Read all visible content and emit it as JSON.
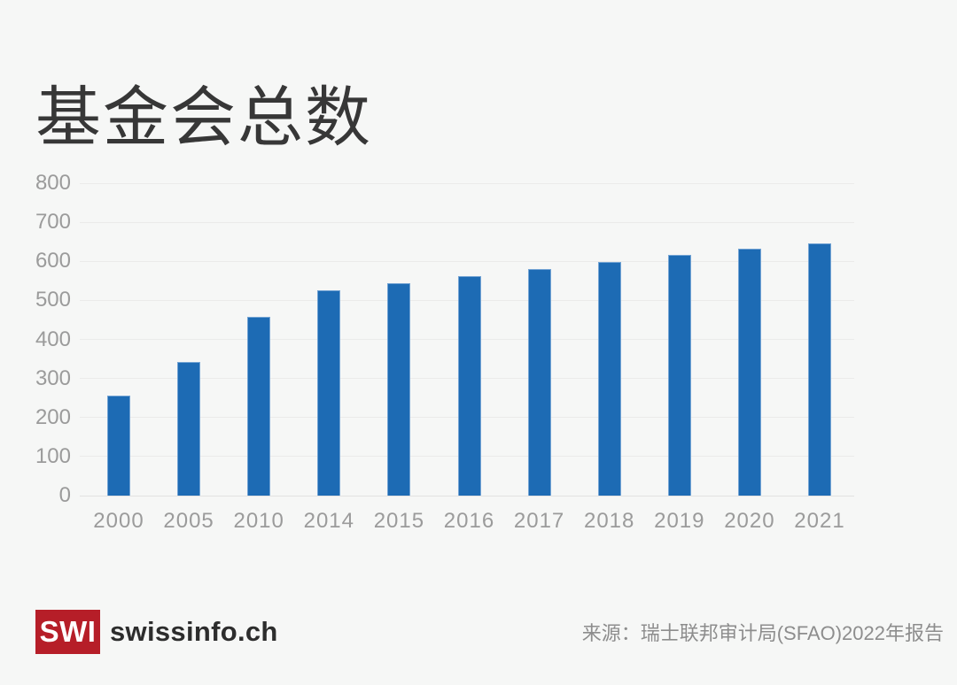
{
  "header": {
    "title": "基金会总数"
  },
  "chart_data": {
    "type": "bar",
    "title": "基金会总数",
    "categories": [
      "2000",
      "2005",
      "2010",
      "2014",
      "2015",
      "2016",
      "2017",
      "2018",
      "2019",
      "2020",
      "2021"
    ],
    "values": [
      257,
      342,
      457,
      525,
      543,
      561,
      581,
      599,
      617,
      632,
      645
    ],
    "xlabel": "",
    "ylabel": "",
    "ylim": [
      0,
      800
    ],
    "yticks": [
      0,
      100,
      200,
      300,
      400,
      500,
      600,
      700,
      800
    ],
    "grid": true,
    "legend": "none",
    "bar_color": "#1d6bb4"
  },
  "footer": {
    "logo_text": "SWI",
    "brand": "swissinfo.ch",
    "source": "来源：瑞士联邦审计局(SFAO)2022年报告"
  },
  "colors": {
    "background": "#f6f7f6",
    "bar": "#1d6bb4",
    "bar_border": "#74a4d4",
    "title_text": "#373737",
    "axis_text": "#9b9b9b",
    "gridline": "#ebebea",
    "brand_red": "#b61e28",
    "brand_text": "#2d2d2d",
    "source_text": "#8d8d8d"
  }
}
